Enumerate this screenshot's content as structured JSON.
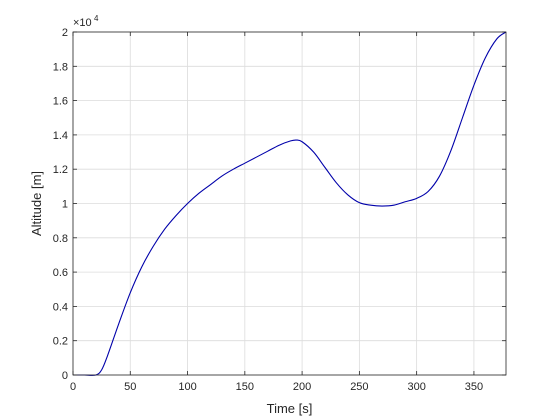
{
  "chart_data": {
    "type": "line",
    "title": "",
    "xlabel": "Time [s]",
    "ylabel": "Altitude [m]",
    "xlim": [
      0,
      378
    ],
    "ylim": [
      0,
      2
    ],
    "y_exponent_label": "×10",
    "y_exponent_value": "4",
    "grid": true,
    "legend": "none",
    "x_ticks": [
      "0",
      "50",
      "100",
      "150",
      "200",
      "250",
      "300",
      "350"
    ],
    "x_tick_values": [
      0,
      50,
      100,
      150,
      200,
      250,
      300,
      350
    ],
    "y_ticks": [
      "0",
      "0.2",
      "0.4",
      "0.6",
      "0.8",
      "1",
      "1.2",
      "1.4",
      "1.6",
      "1.8",
      "2"
    ],
    "y_tick_values": [
      0,
      0.2,
      0.4,
      0.6,
      0.8,
      1.0,
      1.2,
      1.4,
      1.6,
      1.8,
      2.0
    ],
    "series": [
      {
        "color": "#0000aa",
        "x": [
          0,
          10,
          20,
          25,
          30,
          40,
          50,
          60,
          70,
          80,
          90,
          100,
          110,
          120,
          130,
          140,
          150,
          160,
          170,
          180,
          190,
          195,
          200,
          210,
          220,
          230,
          240,
          250,
          260,
          270,
          280,
          290,
          300,
          310,
          320,
          330,
          340,
          350,
          360,
          370,
          378
        ],
        "y": [
          0,
          0,
          0,
          0.03,
          0.11,
          0.3,
          0.48,
          0.63,
          0.75,
          0.85,
          0.93,
          1.0,
          1.06,
          1.11,
          1.16,
          1.2,
          1.235,
          1.27,
          1.305,
          1.34,
          1.365,
          1.37,
          1.36,
          1.3,
          1.21,
          1.12,
          1.05,
          1.005,
          0.99,
          0.985,
          0.99,
          1.01,
          1.03,
          1.07,
          1.16,
          1.31,
          1.5,
          1.69,
          1.85,
          1.96,
          2.0
        ]
      }
    ]
  }
}
